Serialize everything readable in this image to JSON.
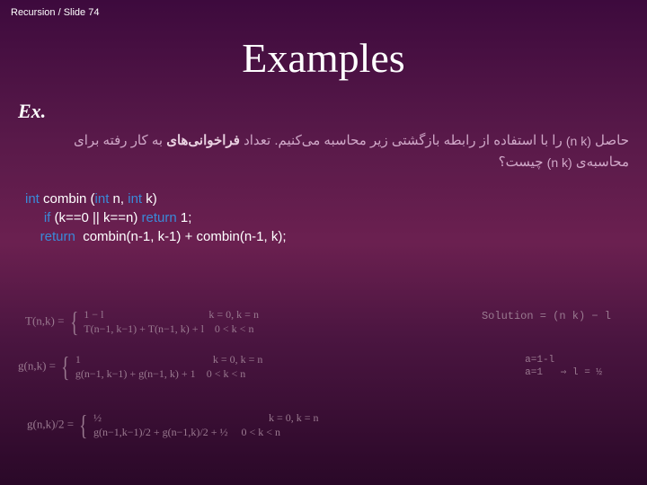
{
  "header": {
    "text": "Recursion / Slide 74"
  },
  "title": {
    "text": "Examples"
  },
  "exLabel": {
    "text": "Ex."
  },
  "persian": {
    "line1_before": "حاصل ",
    "line1_binom": "(n k)",
    "line1_after": " را با استفاده از رابطه بازگشتی زیر محاسبه می‌کنیم. تعداد ",
    "line1_bold": "فراخوانی‌های",
    "line1_end": " به کار رفته برای",
    "line2": "محاسبه‌ی ",
    "line2_binom": "(n k)",
    "line2_end": " چیست؟"
  },
  "code": {
    "l1_kw1": "int",
    "l1_t1": " combin (",
    "l1_kw2": "int",
    "l1_t2": " n, ",
    "l1_kw3": "int",
    "l1_t3": " k)",
    "l2_kw1": "     if",
    "l2_t1": " (k==0 || k==n) ",
    "l2_kw2": "return",
    "l2_t2": " 1;",
    "l3_kw1": "    return ",
    "l3_t1": " combin(n-1, k-1) + combin(n-1, k);"
  },
  "math": {
    "t_eq": "T(n,k) = ",
    "t_case1": "1 − l",
    "t_case1_cond": "k = 0, k = n",
    "t_case2": "T(n−1, k−1) + T(n−1, k) + l",
    "t_case2_cond": "0 < k < n",
    "sol": "Solution = (n k) − l",
    "g_eq": "g(n,k) = ",
    "g_case1": "1",
    "g_case1_cond": "k = 0, k = n",
    "g_case2": "g(n−1, k−1) + g(n−1, k) + 1",
    "g_case2_cond": "0 < k < n",
    "a1": "a=1-l",
    "a2": "a=1",
    "a_arrow": "⇒ l = ½",
    "h_eq": "g(n,k)/2 = ",
    "h_case1": "½",
    "h_case1_cond": "k = 0, k = n",
    "h_case2": "g(n−1,k−1)/2 + g(n−1,k)/2 + ½",
    "h_case2_cond": "0 < k < n"
  }
}
